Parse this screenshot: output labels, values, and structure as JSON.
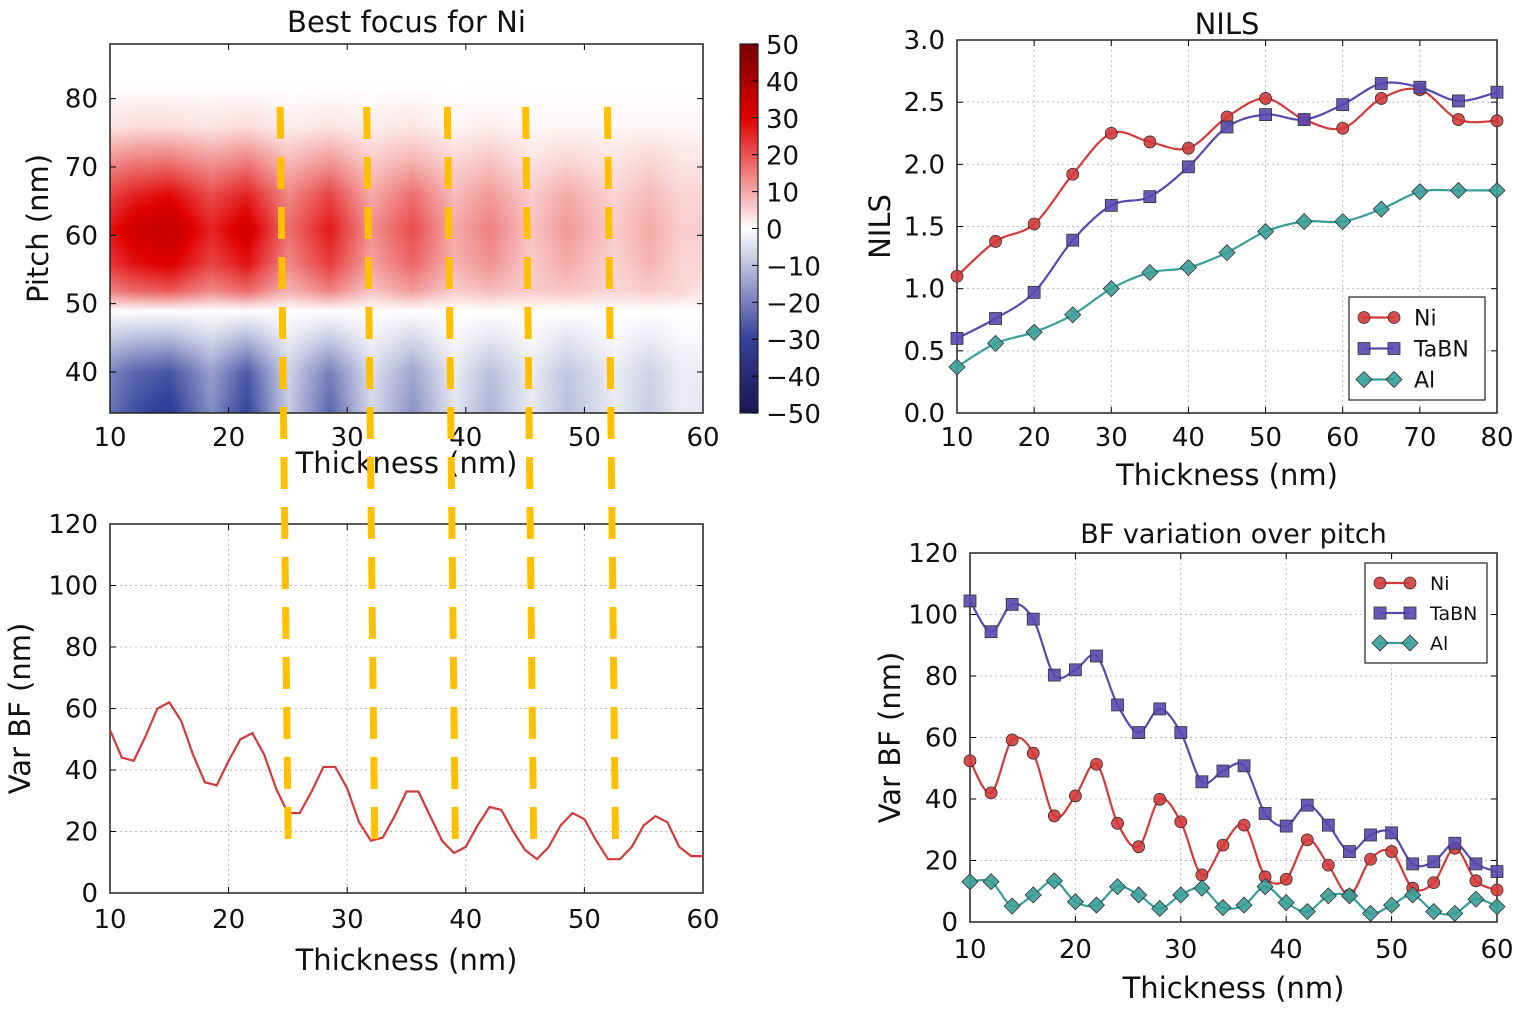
{
  "chart_data": [
    {
      "id": "best-focus",
      "type": "heatmap",
      "title": "Best focus for Ni",
      "xlabel": "Thickness (nm)",
      "ylabel": "Pitch (nm)",
      "xlim": [
        10,
        60
      ],
      "ylim": [
        34,
        88
      ],
      "xticks": [
        10,
        20,
        30,
        40,
        50,
        60
      ],
      "yticks": [
        40,
        50,
        60,
        70,
        80
      ],
      "x": [
        10,
        12,
        15,
        18.5,
        21.5,
        25,
        28.5,
        32,
        35.5,
        39,
        42,
        45.5,
        48.5,
        52.5,
        55.5,
        58,
        60
      ],
      "y": [
        34,
        40,
        45,
        49,
        52,
        56,
        61,
        66,
        71,
        76,
        82,
        88
      ],
      "z": [
        [
          -22,
          -28,
          -32,
          -18,
          -30,
          -8,
          -24,
          -6,
          -17,
          -4,
          -12,
          -3,
          -10,
          -3,
          -8,
          -3,
          -4
        ],
        [
          -19,
          -24,
          -27,
          -15,
          -26,
          -7,
          -20,
          -5,
          -14,
          -3,
          -10,
          -3,
          -9,
          -3,
          -7,
          -3,
          -3
        ],
        [
          -8,
          -10,
          -11,
          -6,
          -11,
          -3,
          -8,
          -2,
          -6,
          -1,
          -4,
          -1,
          -4,
          -1,
          -3,
          -1,
          -1
        ],
        [
          0,
          0,
          0,
          0,
          0,
          0,
          0,
          0,
          0,
          0,
          0,
          0,
          0,
          0,
          0,
          0,
          0
        ],
        [
          15,
          18,
          20,
          14,
          18,
          9,
          15,
          7,
          12,
          6,
          8,
          6,
          7,
          5,
          6,
          5,
          3
        ],
        [
          24,
          28,
          31,
          22,
          28,
          14,
          23,
          11,
          18,
          9,
          13,
          6,
          10,
          5,
          9,
          5,
          5
        ],
        [
          28,
          33,
          36,
          26,
          33,
          17,
          27,
          13,
          21,
          10,
          15,
          7,
          12,
          6,
          10,
          6,
          6
        ],
        [
          22,
          26,
          29,
          21,
          26,
          14,
          22,
          10,
          17,
          8,
          12,
          6,
          10,
          5,
          8,
          5,
          5
        ],
        [
          13,
          15,
          16,
          12,
          15,
          8,
          12,
          6,
          9,
          5,
          7,
          3,
          5,
          3,
          5,
          3,
          3
        ],
        [
          3,
          4,
          4,
          3,
          4,
          2,
          3,
          2,
          3,
          1,
          2,
          1,
          1,
          1,
          1,
          1,
          1
        ],
        [
          0,
          0,
          0,
          0,
          0,
          0,
          0,
          0,
          0,
          0,
          0,
          0,
          0,
          0,
          0,
          0,
          0
        ],
        [
          0,
          0,
          0,
          0,
          0,
          0,
          0,
          0,
          0,
          0,
          0,
          0,
          0,
          0,
          0,
          0,
          0
        ]
      ],
      "colorbar": {
        "min": -50,
        "max": 50,
        "ticks": [
          50,
          40,
          30,
          20,
          10,
          0,
          -10,
          -20,
          -30,
          -40,
          -50
        ],
        "tick_labels": [
          "50",
          "40",
          "30",
          "20",
          "10",
          "0",
          "−10",
          "−20",
          "−30",
          "−40",
          "−50"
        ]
      },
      "annotations": {
        "dashed_lines_thickness": [
          24.6,
          31.9,
          38.7,
          45.3,
          52.2
        ],
        "color": "#ffc000"
      }
    },
    {
      "id": "var-bf-ni",
      "type": "line",
      "title": "",
      "xlabel": "Thickness (nm)",
      "ylabel": "Var BF (nm)",
      "xlim": [
        10,
        60
      ],
      "ylim": [
        0,
        120
      ],
      "xticks": [
        10,
        20,
        30,
        40,
        50,
        60
      ],
      "yticks": [
        0,
        20,
        40,
        60,
        80,
        100,
        120
      ],
      "grid": true,
      "series": [
        {
          "name": "Ni",
          "color": "#d43a3a",
          "x": [
            10,
            11,
            12,
            13,
            14,
            15,
            16,
            17,
            18,
            19,
            20,
            21,
            22,
            23,
            24,
            25,
            26,
            27,
            28,
            29,
            30,
            31,
            32,
            33,
            34,
            35,
            36,
            37,
            38,
            39,
            40,
            41,
            42,
            43,
            44,
            45,
            46,
            47,
            48,
            49,
            50,
            51,
            52,
            53,
            54,
            55,
            56,
            57,
            58,
            59,
            60
          ],
          "y": [
            53,
            44,
            43,
            51,
            60,
            62,
            56,
            45,
            36,
            35,
            43,
            50,
            52,
            45,
            34,
            26,
            26,
            33,
            41,
            41,
            34,
            23,
            17,
            18,
            25,
            33,
            33,
            25,
            17,
            13,
            15,
            22,
            28,
            27,
            20,
            14,
            11,
            15,
            22,
            26,
            24,
            17,
            11,
            11,
            15,
            22,
            25,
            23,
            15,
            12,
            12
          ]
        }
      ]
    },
    {
      "id": "nils",
      "type": "line",
      "title": "NILS",
      "xlabel": "Thickness (nm)",
      "ylabel": "NILS",
      "xlim": [
        10,
        80
      ],
      "ylim": [
        0,
        3
      ],
      "xticks": [
        10,
        20,
        30,
        40,
        50,
        60,
        70,
        80
      ],
      "yticks": [
        0,
        0.5,
        1,
        1.5,
        2,
        2.5,
        3
      ],
      "ytick_labels": [
        "0.0",
        "0.5",
        "1.0",
        "1.5",
        "2.0",
        "2.5",
        "3.0"
      ],
      "grid": true,
      "legend": "lower-right",
      "series": [
        {
          "name": "Ni",
          "marker": "circle",
          "color": "#d43a3a",
          "x": [
            10,
            15,
            20,
            25,
            30,
            35,
            40,
            45,
            50,
            55,
            60,
            65,
            70,
            75,
            80
          ],
          "y": [
            1.1,
            1.38,
            1.52,
            1.92,
            2.25,
            2.18,
            2.13,
            2.38,
            2.53,
            2.36,
            2.29,
            2.53,
            2.6,
            2.36,
            2.35
          ]
        },
        {
          "name": "TaBN",
          "marker": "square",
          "color": "#5a48b0",
          "x": [
            10,
            15,
            20,
            25,
            30,
            35,
            40,
            45,
            50,
            55,
            60,
            65,
            70,
            75,
            80
          ],
          "y": [
            0.6,
            0.76,
            0.97,
            1.39,
            1.67,
            1.74,
            1.98,
            2.3,
            2.4,
            2.36,
            2.48,
            2.65,
            2.62,
            2.51,
            2.58
          ]
        },
        {
          "name": "Al",
          "marker": "diamond",
          "color": "#389f98",
          "x": [
            10,
            15,
            20,
            25,
            30,
            35,
            40,
            45,
            50,
            55,
            60,
            65,
            70,
            75,
            80
          ],
          "y": [
            0.37,
            0.56,
            0.65,
            0.79,
            1.0,
            1.13,
            1.17,
            1.29,
            1.46,
            1.54,
            1.54,
            1.64,
            1.78,
            1.79,
            1.79
          ]
        }
      ]
    },
    {
      "id": "bf-variation",
      "type": "line",
      "title": "BF variation over pitch",
      "xlabel": "Thickness (nm)",
      "ylabel": "Var BF (nm)",
      "xlim": [
        10,
        60
      ],
      "ylim": [
        0,
        120
      ],
      "xticks": [
        10,
        20,
        30,
        40,
        50,
        60
      ],
      "yticks": [
        0,
        20,
        40,
        60,
        80,
        100,
        120
      ],
      "grid": true,
      "legend": "upper-right",
      "series": [
        {
          "name": "Ni",
          "marker": "circle",
          "color": "#d43a3a",
          "x": [
            10,
            12,
            14,
            16,
            18,
            20,
            22,
            24,
            26,
            28,
            30,
            32,
            34,
            36,
            38,
            40,
            42,
            44,
            46,
            48,
            50,
            52,
            54,
            56,
            58,
            60
          ],
          "y": [
            52.4,
            42,
            59.2,
            54.9,
            34.5,
            41,
            51.3,
            32.1,
            24.5,
            39.9,
            32.6,
            15.3,
            25,
            31.5,
            14.7,
            13.9,
            26.7,
            18.5,
            8.8,
            20.4,
            22.9,
            11,
            12.8,
            24,
            13.4,
            10.4
          ]
        },
        {
          "name": "TaBN",
          "marker": "square",
          "color": "#5a48b0",
          "x": [
            10,
            12,
            14,
            16,
            18,
            20,
            22,
            24,
            26,
            28,
            30,
            32,
            34,
            36,
            38,
            40,
            42,
            44,
            46,
            48,
            50,
            52,
            54,
            56,
            58,
            60
          ],
          "y": [
            104.4,
            94.4,
            103.3,
            98.5,
            80.3,
            82,
            86.5,
            70.6,
            61.6,
            69.3,
            61.6,
            45.6,
            49.1,
            50.8,
            35.3,
            31.2,
            38,
            31.5,
            22.9,
            28.3,
            29,
            18.9,
            19.6,
            25.6,
            18.9,
            16.4
          ]
        },
        {
          "name": "Al",
          "marker": "diamond",
          "color": "#389f98",
          "x": [
            10,
            12,
            14,
            16,
            18,
            20,
            22,
            24,
            26,
            28,
            30,
            32,
            34,
            36,
            38,
            40,
            42,
            44,
            46,
            48,
            50,
            52,
            54,
            56,
            58,
            60
          ],
          "y": [
            13.1,
            13.1,
            5.2,
            8.8,
            13.4,
            6.6,
            5.5,
            11.5,
            8.8,
            4.4,
            8.8,
            11.0,
            4.7,
            5.5,
            11.5,
            6.3,
            3.4,
            8.5,
            8.5,
            2.8,
            5.5,
            8.8,
            3.4,
            2.8,
            7.4,
            5.0
          ]
        }
      ]
    }
  ]
}
